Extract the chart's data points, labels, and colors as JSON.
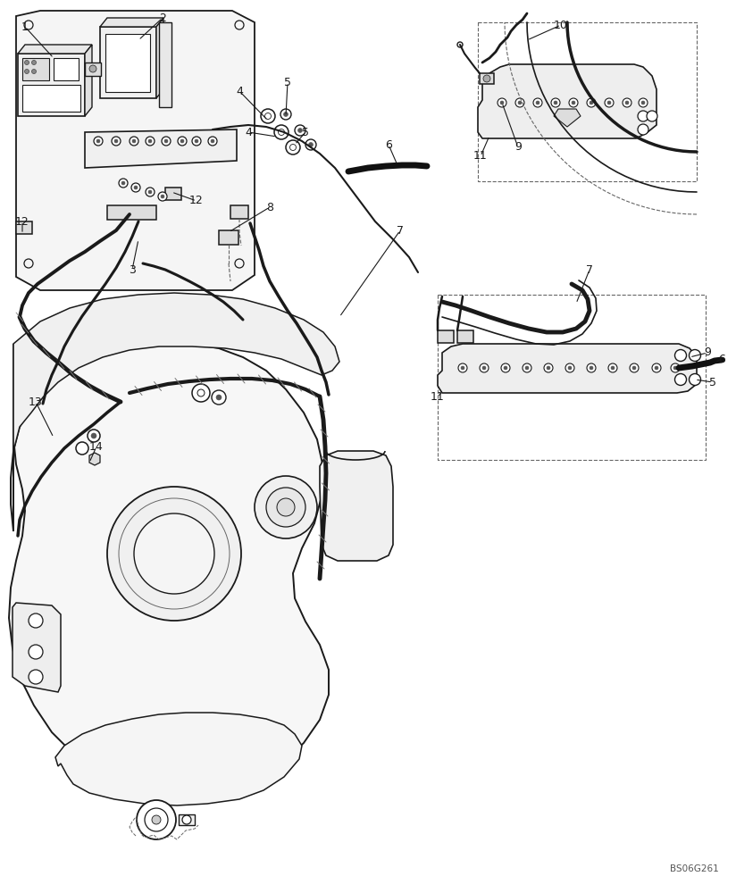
{
  "background_color": "#ffffff",
  "image_code": "BS06G261",
  "line_color": "#1a1a1a",
  "line_color_med": "#666666",
  "figsize": [
    8.24,
    10.0
  ],
  "dpi": 100,
  "label_fontsize": 9.0,
  "xlim": [
    0,
    824
  ],
  "ylim": [
    0,
    1000
  ]
}
